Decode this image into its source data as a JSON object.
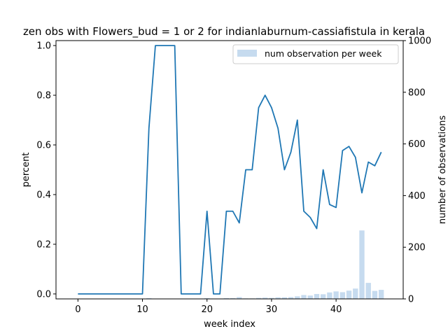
{
  "chart_data": {
    "type": "bar+line",
    "title": "zen obs with Flowers_bud = 1 or 2 for indianlaburnum-cassiafistula in kerala",
    "xlabel": "week index",
    "ylabel": "percent",
    "y2label": "number of observations",
    "xlim": [
      -3.4,
      50.4
    ],
    "ylim": [
      -0.02,
      1.02
    ],
    "y2lim": [
      0,
      1000
    ],
    "xticks": [
      "0",
      "10",
      "20",
      "30",
      "40"
    ],
    "yticks": [
      "0.0",
      "0.2",
      "0.4",
      "0.6",
      "0.8",
      "1.0"
    ],
    "y2ticks": [
      "0",
      "200",
      "400",
      "600",
      "800",
      "1000"
    ],
    "line_color": "#1f77b4",
    "bar_color": "#c6dbef",
    "legend": {
      "label": "num observation per week",
      "placement": "top-right"
    },
    "line": {
      "x": [
        0,
        1,
        2,
        3,
        4,
        5,
        6,
        7,
        8,
        9,
        10,
        11,
        12,
        13,
        14,
        15,
        16,
        17,
        18,
        19,
        20,
        21,
        22,
        23,
        24,
        25,
        26,
        27,
        28,
        29,
        30,
        31,
        32,
        33,
        34,
        35,
        36,
        37,
        38,
        39,
        40,
        41,
        42,
        43,
        44,
        45,
        46,
        47
      ],
      "y": [
        0,
        0,
        0,
        0,
        0,
        0,
        0,
        0,
        0,
        0,
        0,
        0.667,
        1.0,
        1.0,
        1.0,
        1.0,
        0,
        0,
        0,
        0,
        0.333,
        0,
        0,
        0.333,
        0.333,
        0.286,
        0.5,
        0.5,
        0.75,
        0.8,
        0.75,
        0.667,
        0.5,
        0.571,
        0.7,
        0.333,
        0.308,
        0.263,
        0.5,
        0.36,
        0.348,
        0.577,
        0.594,
        0.55,
        0.407,
        0.531,
        0.516,
        0.571
      ]
    },
    "bars": {
      "x": [
        0,
        1,
        2,
        3,
        4,
        5,
        6,
        7,
        8,
        9,
        10,
        11,
        12,
        13,
        14,
        15,
        16,
        17,
        18,
        19,
        20,
        21,
        22,
        23,
        24,
        25,
        26,
        27,
        28,
        29,
        30,
        31,
        32,
        33,
        34,
        35,
        36,
        37,
        38,
        39,
        40,
        41,
        42,
        43,
        44,
        45,
        46,
        47
      ],
      "values": [
        1,
        1,
        1,
        1,
        1,
        1,
        1,
        1,
        1,
        1,
        1,
        3,
        1,
        1,
        1,
        1,
        1,
        1,
        1,
        1,
        3,
        1,
        1,
        3,
        3,
        7,
        2,
        2,
        4,
        5,
        4,
        6,
        6,
        7,
        10,
        15,
        13,
        19,
        18,
        25,
        29,
        26,
        32,
        40,
        265,
        62,
        31,
        35
      ]
    }
  }
}
